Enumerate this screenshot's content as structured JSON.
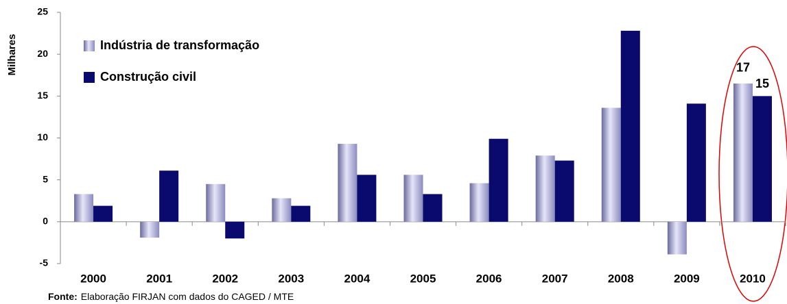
{
  "chart_data": {
    "type": "bar",
    "y_label": "Milhares",
    "categories": [
      "2000",
      "2001",
      "2002",
      "2003",
      "2004",
      "2005",
      "2006",
      "2007",
      "2008",
      "2009",
      "2010"
    ],
    "series": [
      {
        "name": "Indústria de transformação",
        "color": "#a8a8d8",
        "values": [
          3.3,
          -1.9,
          4.5,
          2.8,
          9.3,
          5.6,
          4.6,
          7.9,
          13.6,
          -3.9,
          16.5
        ],
        "value_labels": [
          null,
          null,
          null,
          null,
          null,
          null,
          null,
          null,
          null,
          null,
          "17"
        ]
      },
      {
        "name": "Construção civil",
        "color": "#0a0a6e",
        "values": [
          1.9,
          6.1,
          -2.0,
          1.9,
          5.6,
          3.3,
          9.9,
          7.3,
          22.8,
          14.1,
          15.0
        ],
        "value_labels": [
          null,
          null,
          null,
          null,
          null,
          null,
          null,
          null,
          null,
          null,
          "15"
        ]
      }
    ],
    "ylim": [
      -5,
      25
    ],
    "yticks": [
      -5,
      0,
      5,
      10,
      15,
      20,
      25
    ],
    "source_label": "Fonte:",
    "source": "Elaboração FIRJAN com dados do CAGED / MTE"
  }
}
